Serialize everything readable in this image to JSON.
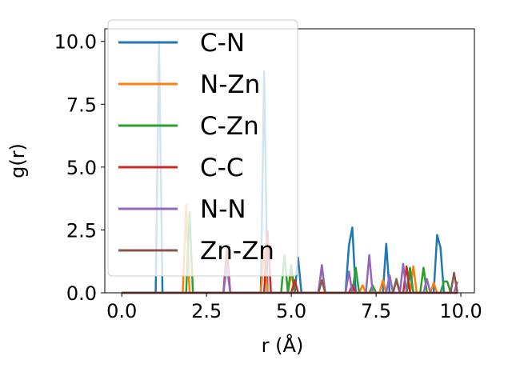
{
  "chart_data": {
    "type": "line",
    "xlabel": "r (Å)",
    "ylabel": "g(r)",
    "xlim": [
      -0.5,
      10.4
    ],
    "ylim": [
      0,
      10.5
    ],
    "xticks": [
      0.0,
      2.5,
      5.0,
      7.5,
      10.0
    ],
    "xtick_labels": [
      "0.0",
      "2.5",
      "5.0",
      "7.5",
      "10.0"
    ],
    "yticks": [
      0.0,
      2.5,
      5.0,
      7.5,
      10.0
    ],
    "ytick_labels": [
      "0.0",
      "2.5",
      "5.0",
      "7.5",
      "10.0"
    ],
    "grid": false,
    "legend_position": "upper-left",
    "series": [
      {
        "name": "C-N",
        "color": "#1f77b4",
        "points": [
          [
            0,
            0
          ],
          [
            1.0,
            0
          ],
          [
            1.1,
            10.0
          ],
          [
            1.2,
            0
          ],
          [
            4.1,
            0
          ],
          [
            4.2,
            8.8
          ],
          [
            4.3,
            0
          ],
          [
            5.1,
            0
          ],
          [
            5.2,
            1.4
          ],
          [
            5.3,
            0
          ],
          [
            6.6,
            0
          ],
          [
            6.7,
            1.9
          ],
          [
            6.8,
            2.6
          ],
          [
            6.9,
            0
          ],
          [
            7.7,
            0
          ],
          [
            7.8,
            1.95
          ],
          [
            7.9,
            0
          ],
          [
            8.4,
            0
          ],
          [
            8.5,
            0.8
          ],
          [
            8.6,
            0
          ],
          [
            9.2,
            0
          ],
          [
            9.3,
            2.3
          ],
          [
            9.4,
            1.8
          ],
          [
            9.5,
            0
          ],
          [
            9.9,
            0
          ]
        ]
      },
      {
        "name": "N-Zn",
        "color": "#ff7f0e",
        "points": [
          [
            0,
            0
          ],
          [
            1.8,
            0
          ],
          [
            1.9,
            3.5
          ],
          [
            2.0,
            0
          ],
          [
            4.1,
            0
          ],
          [
            4.2,
            1.7
          ],
          [
            4.3,
            0
          ],
          [
            4.9,
            0
          ],
          [
            5.0,
            0.8
          ],
          [
            5.1,
            0
          ],
          [
            7.0,
            0
          ],
          [
            7.1,
            0.3
          ],
          [
            7.2,
            0
          ],
          [
            7.6,
            0
          ],
          [
            7.7,
            0.5
          ],
          [
            7.8,
            0
          ],
          [
            8.5,
            0
          ],
          [
            8.6,
            1.05
          ],
          [
            8.7,
            0
          ],
          [
            9.1,
            0
          ],
          [
            9.2,
            0.4
          ],
          [
            9.3,
            0
          ],
          [
            9.9,
            0
          ]
        ]
      },
      {
        "name": "C-Zn",
        "color": "#2ca02c",
        "points": [
          [
            0,
            0
          ],
          [
            1.9,
            0
          ],
          [
            2.0,
            3.2
          ],
          [
            2.1,
            0
          ],
          [
            4.7,
            0
          ],
          [
            4.8,
            1.5
          ],
          [
            4.9,
            0
          ],
          [
            5.0,
            1.1
          ],
          [
            5.1,
            0
          ],
          [
            5.8,
            0
          ],
          [
            5.9,
            1.05
          ],
          [
            6.0,
            0
          ],
          [
            6.8,
            0
          ],
          [
            6.9,
            1.0
          ],
          [
            7.0,
            0
          ],
          [
            7.3,
            0
          ],
          [
            7.4,
            0.3
          ],
          [
            7.5,
            0
          ],
          [
            8.0,
            0
          ],
          [
            8.1,
            0.55
          ],
          [
            8.2,
            0
          ],
          [
            8.4,
            0
          ],
          [
            8.5,
            1.0
          ],
          [
            8.6,
            0
          ],
          [
            8.8,
            0
          ],
          [
            8.9,
            1.0
          ],
          [
            9.0,
            0
          ],
          [
            9.4,
            0
          ],
          [
            9.5,
            0.45
          ],
          [
            9.6,
            0.45
          ],
          [
            9.7,
            0
          ],
          [
            9.9,
            0
          ]
        ]
      },
      {
        "name": "C-C",
        "color": "#d62728",
        "points": [
          [
            0,
            0
          ],
          [
            3.0,
            0
          ],
          [
            3.1,
            1.75
          ],
          [
            3.2,
            0
          ],
          [
            4.2,
            0
          ],
          [
            4.3,
            2.45
          ],
          [
            4.4,
            0
          ],
          [
            5.0,
            0
          ],
          [
            5.1,
            0.5
          ],
          [
            5.2,
            0
          ],
          [
            6.7,
            0
          ],
          [
            6.8,
            0.3
          ],
          [
            6.9,
            0
          ],
          [
            8.3,
            0
          ],
          [
            8.4,
            1.05
          ],
          [
            8.5,
            0
          ],
          [
            9.9,
            0
          ]
        ]
      },
      {
        "name": "N-N",
        "color": "#9467bd",
        "points": [
          [
            0,
            0
          ],
          [
            3.0,
            0
          ],
          [
            3.1,
            1.1
          ],
          [
            3.2,
            0
          ],
          [
            5.8,
            0
          ],
          [
            5.9,
            1.1
          ],
          [
            6.0,
            0
          ],
          [
            6.6,
            0
          ],
          [
            6.7,
            0.85
          ],
          [
            6.8,
            0
          ],
          [
            7.2,
            0
          ],
          [
            7.3,
            1.5
          ],
          [
            7.4,
            0
          ],
          [
            7.8,
            0
          ],
          [
            7.9,
            0.7
          ],
          [
            8.0,
            0
          ],
          [
            8.2,
            0
          ],
          [
            8.3,
            1.15
          ],
          [
            8.4,
            0
          ],
          [
            8.9,
            0
          ],
          [
            9.0,
            0.55
          ],
          [
            9.1,
            0
          ],
          [
            9.8,
            0
          ],
          [
            9.9,
            0.45
          ]
        ]
      },
      {
        "name": "Zn-Zn",
        "color": "#8c564b",
        "points": [
          [
            0,
            0
          ],
          [
            5.8,
            0
          ],
          [
            5.9,
            0.5
          ],
          [
            6.0,
            0
          ],
          [
            8.0,
            0
          ],
          [
            8.1,
            0.5
          ],
          [
            8.2,
            0
          ],
          [
            9.7,
            0
          ],
          [
            9.8,
            0.8
          ],
          [
            9.9,
            0
          ]
        ]
      }
    ]
  }
}
